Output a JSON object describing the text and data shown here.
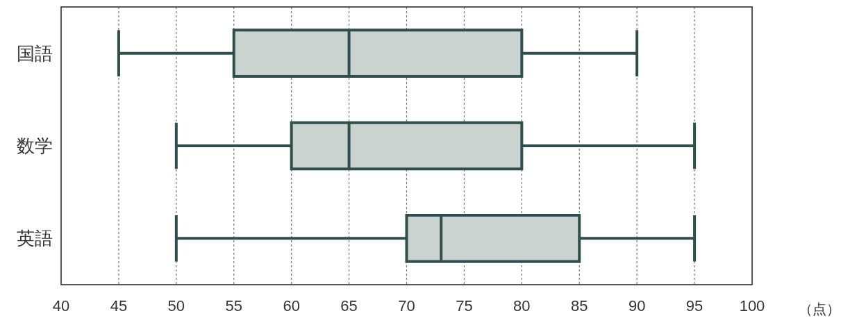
{
  "chart_data": {
    "type": "box",
    "orientation": "horizontal",
    "categories": [
      "国語",
      "数学",
      "英語"
    ],
    "xlabel": "（点）",
    "xlim": [
      40,
      100
    ],
    "xticks": [
      40,
      45,
      50,
      55,
      60,
      65,
      70,
      75,
      80,
      85,
      90,
      95,
      100
    ],
    "grid": "x",
    "series": [
      {
        "color": "#cbd3d1",
        "boxes": [
          {
            "low": 45,
            "q1": 55,
            "median": 65,
            "q3": 80,
            "high": 90
          },
          {
            "low": 50,
            "q1": 60,
            "median": 65,
            "q3": 80,
            "high": 95
          },
          {
            "low": 50,
            "q1": 70,
            "median": 73,
            "q3": 85,
            "high": 95
          }
        ]
      }
    ]
  }
}
